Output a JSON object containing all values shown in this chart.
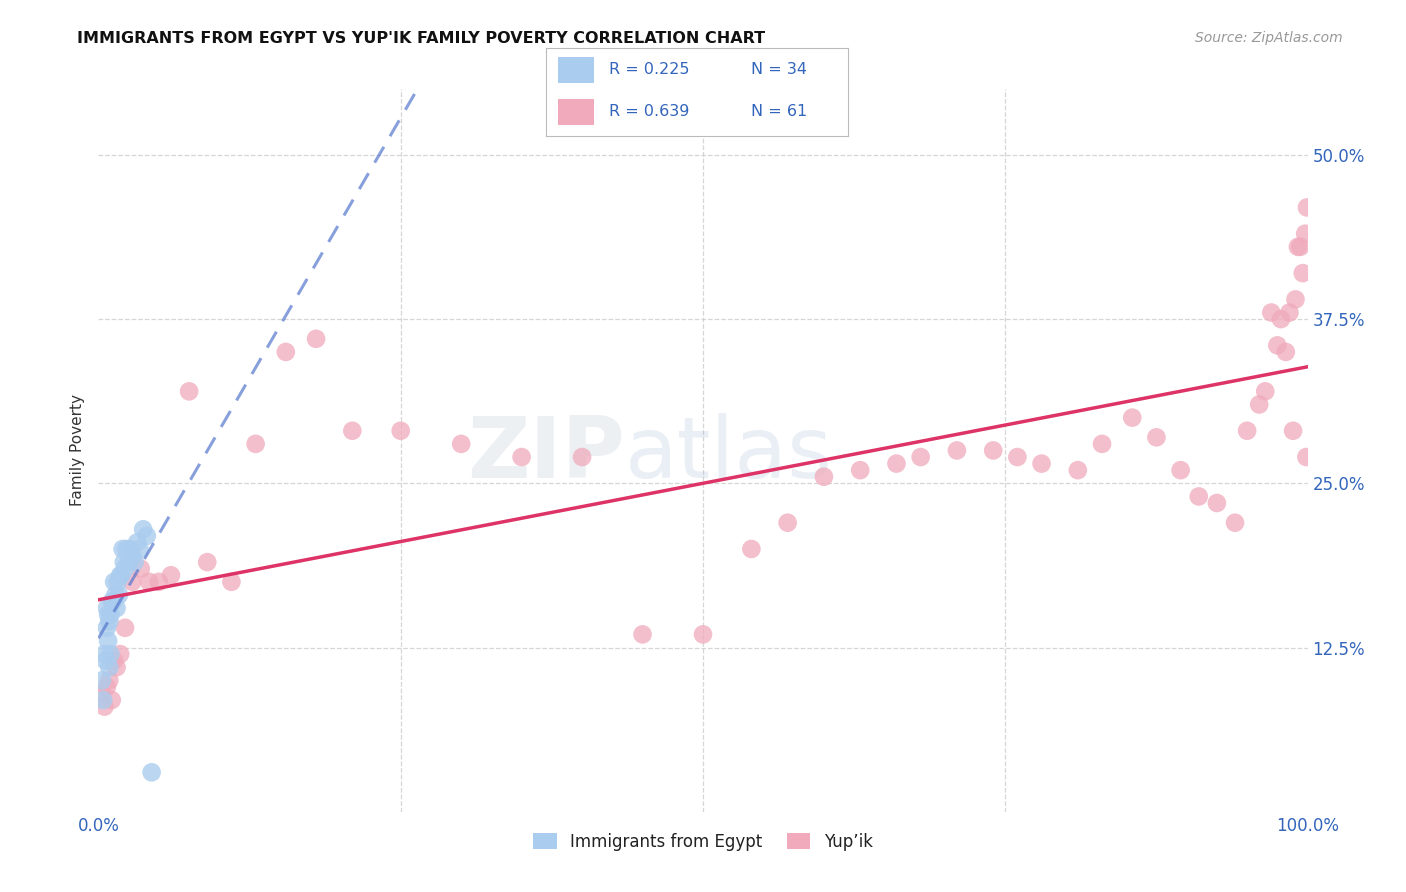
{
  "title": "IMMIGRANTS FROM EGYPT VS YUP'IK FAMILY POVERTY CORRELATION CHART",
  "source": "Source: ZipAtlas.com",
  "ylabel": "Family Poverty",
  "watermark_zip": "ZIP",
  "watermark_atlas": "atlas",
  "xlim": [
    0,
    1.0
  ],
  "ylim": [
    0,
    0.55
  ],
  "xtick_positions": [
    0.0,
    0.25,
    0.5,
    0.75,
    1.0
  ],
  "xtick_labels": [
    "0.0%",
    "",
    "",
    "",
    "100.0%"
  ],
  "ytick_positions": [
    0.0,
    0.125,
    0.25,
    0.375,
    0.5
  ],
  "ytick_labels": [
    "",
    "12.5%",
    "25.0%",
    "37.5%",
    "50.0%"
  ],
  "grid_color": "#cccccc",
  "background_color": "#ffffff",
  "color_egypt": "#aaccee",
  "color_yupik": "#f0aabb",
  "trendline_egypt_color": "#5577cc",
  "trendline_yupik_color": "#dd3366",
  "egypt_x": [
    0.003,
    0.004,
    0.005,
    0.006,
    0.007,
    0.007,
    0.008,
    0.008,
    0.009,
    0.009,
    0.01,
    0.01,
    0.011,
    0.012,
    0.013,
    0.014,
    0.015,
    0.016,
    0.017,
    0.018,
    0.019,
    0.02,
    0.021,
    0.022,
    0.023,
    0.025,
    0.026,
    0.028,
    0.03,
    0.032,
    0.034,
    0.037,
    0.04,
    0.044
  ],
  "egypt_y": [
    0.1,
    0.085,
    0.12,
    0.115,
    0.14,
    0.155,
    0.13,
    0.15,
    0.11,
    0.145,
    0.12,
    0.15,
    0.16,
    0.16,
    0.175,
    0.165,
    0.155,
    0.175,
    0.165,
    0.18,
    0.18,
    0.2,
    0.19,
    0.185,
    0.2,
    0.19,
    0.2,
    0.195,
    0.19,
    0.205,
    0.2,
    0.215,
    0.21,
    0.03
  ],
  "yupik_x": [
    0.003,
    0.005,
    0.007,
    0.009,
    0.011,
    0.013,
    0.015,
    0.018,
    0.022,
    0.028,
    0.035,
    0.042,
    0.05,
    0.06,
    0.075,
    0.09,
    0.11,
    0.13,
    0.155,
    0.18,
    0.21,
    0.25,
    0.3,
    0.35,
    0.4,
    0.45,
    0.5,
    0.54,
    0.57,
    0.6,
    0.63,
    0.66,
    0.68,
    0.71,
    0.74,
    0.76,
    0.78,
    0.81,
    0.83,
    0.855,
    0.875,
    0.895,
    0.91,
    0.925,
    0.94,
    0.95,
    0.96,
    0.965,
    0.97,
    0.975,
    0.978,
    0.982,
    0.985,
    0.988,
    0.99,
    0.992,
    0.994,
    0.996,
    0.998,
    0.999,
    0.9995
  ],
  "yupik_y": [
    0.09,
    0.08,
    0.095,
    0.1,
    0.085,
    0.115,
    0.11,
    0.12,
    0.14,
    0.175,
    0.185,
    0.175,
    0.175,
    0.18,
    0.32,
    0.19,
    0.175,
    0.28,
    0.35,
    0.36,
    0.29,
    0.29,
    0.28,
    0.27,
    0.27,
    0.135,
    0.135,
    0.2,
    0.22,
    0.255,
    0.26,
    0.265,
    0.27,
    0.275,
    0.275,
    0.27,
    0.265,
    0.26,
    0.28,
    0.3,
    0.285,
    0.26,
    0.24,
    0.235,
    0.22,
    0.29,
    0.31,
    0.32,
    0.38,
    0.355,
    0.375,
    0.35,
    0.38,
    0.29,
    0.39,
    0.43,
    0.43,
    0.41,
    0.44,
    0.27,
    0.46
  ],
  "legend_items": [
    {
      "label": "R = 0.225   N = 34",
      "color": "#aaccee"
    },
    {
      "label": "R = 0.639   N = 61",
      "color": "#f0aabb"
    }
  ],
  "bottom_legend": [
    {
      "label": "Immigrants from Egypt",
      "color": "#aaccee"
    },
    {
      "label": "Yup’ik",
      "color": "#f0aabb"
    }
  ]
}
